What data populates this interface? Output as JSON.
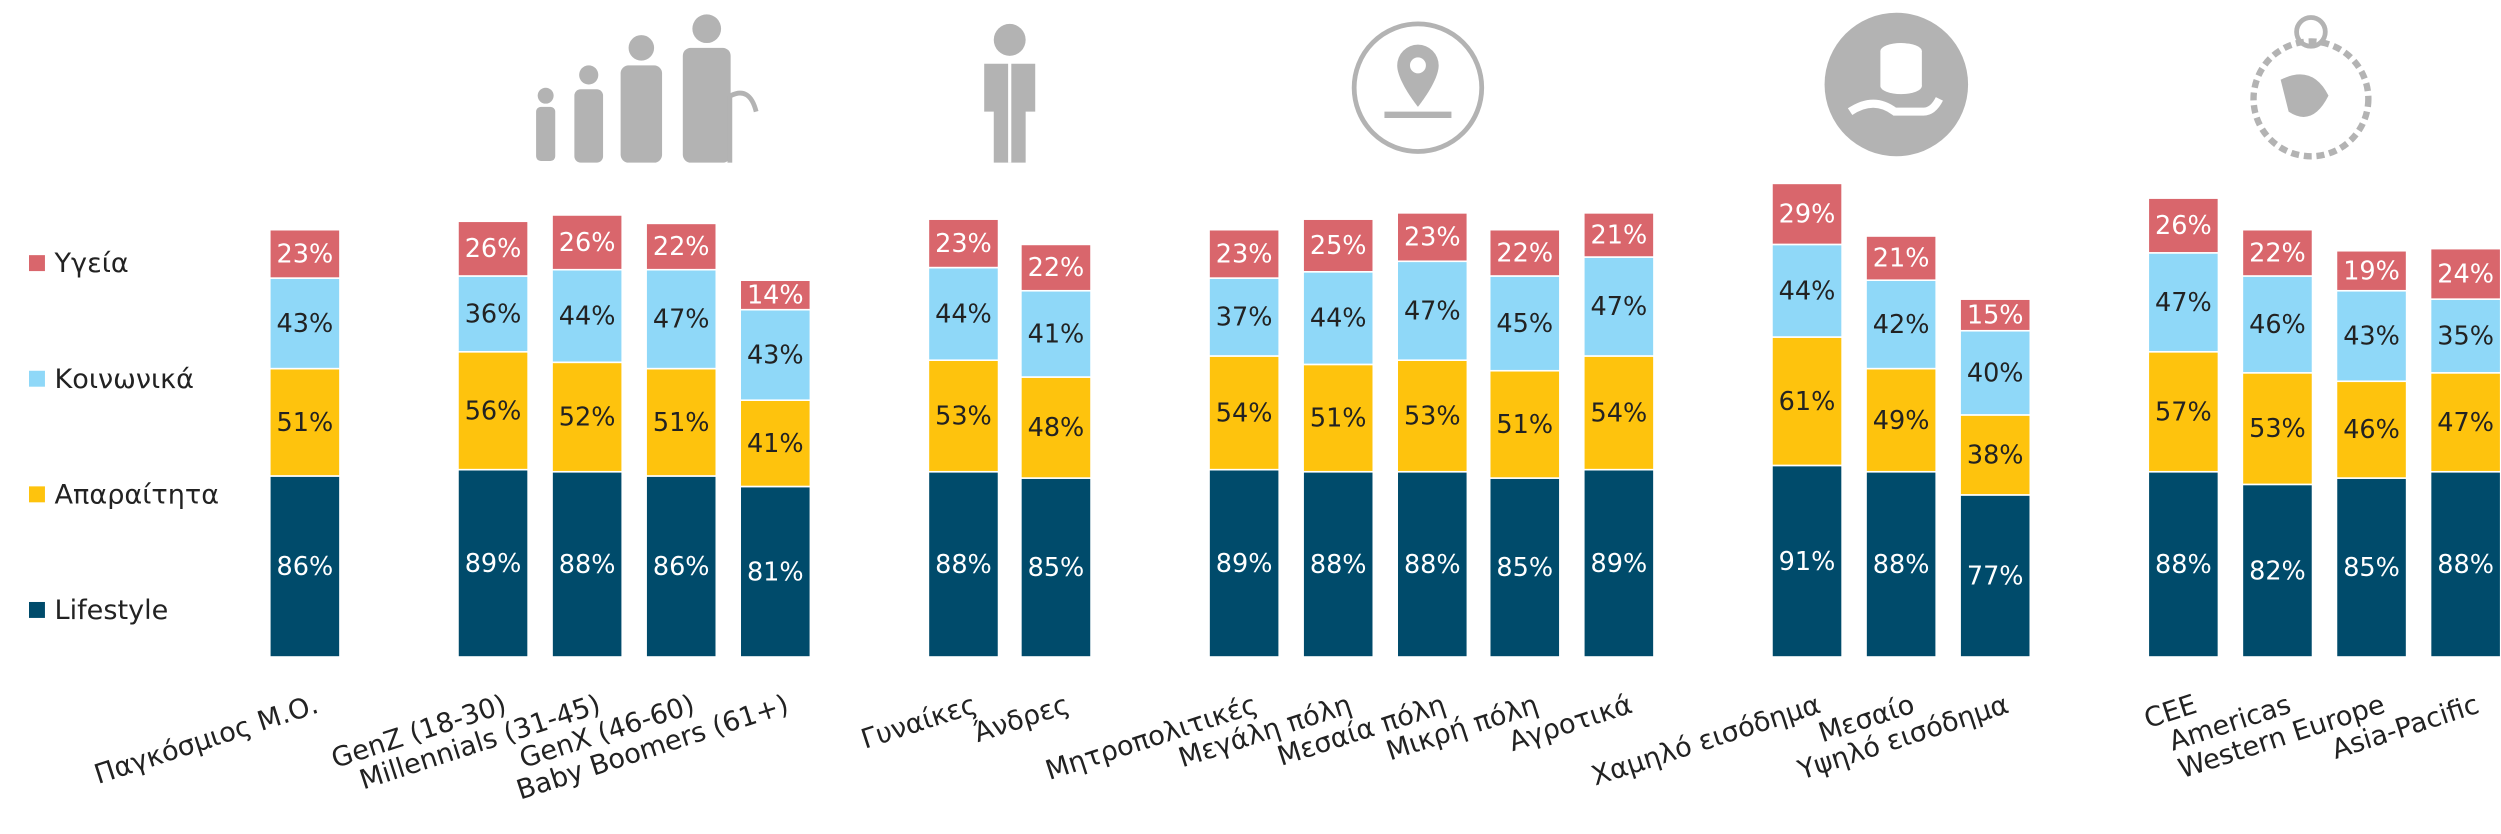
{
  "chart_data": {
    "type": "stacked_bar",
    "categories": [
      "Παγκόσμιος Μ.Ο.",
      "GenZ (18-30)",
      "Millennials (31-45)",
      "GenX (46-60)",
      "Baby Boomers (61+)",
      "Γυναίκες",
      "Άνδρες",
      "Μητροπολιτικές",
      "Μεγάλη πόλη",
      "Μεσαία πόλη",
      "Μικρή πόλη",
      "Αγροτικά",
      "Χαμηλό εισόδημα",
      "Μεσαίο",
      "Υψηλό εισόδημα",
      "CEE",
      "Americas",
      "Western Europe",
      "Asia-Pacific"
    ],
    "series": [
      {
        "name": "Lifestyle",
        "color": "#004b6b",
        "values": [
          86,
          89,
          88,
          86,
          81,
          88,
          85,
          89,
          88,
          88,
          85,
          89,
          91,
          88,
          77,
          88,
          82,
          85,
          88
        ],
        "value_labels": [
          "86%",
          "89%",
          "88%",
          "86%",
          "81%",
          "88%",
          "85%",
          "89%",
          "88%",
          "88%",
          "85%",
          "89%",
          "91%",
          "88%",
          "77%",
          "88%",
          "82%",
          "85%",
          "88%"
        ]
      },
      {
        "name": "Απαραίτητα",
        "color": "#fec30d",
        "values": [
          51,
          56,
          52,
          51,
          41,
          53,
          48,
          54,
          51,
          53,
          51,
          54,
          61,
          49,
          38,
          57,
          53,
          46,
          47
        ],
        "value_labels": [
          "51%",
          "56%",
          "52%",
          "51%",
          "41%",
          "53%",
          "48%",
          "54%",
          "51%",
          "53%",
          "51%",
          "54%",
          "61%",
          "49%",
          "38%",
          "57%",
          "53%",
          "46%",
          "47%"
        ]
      },
      {
        "name": "Κοινωνικά",
        "color": "#8fd8f8",
        "values": [
          43,
          36,
          44,
          47,
          43,
          44,
          41,
          37,
          44,
          47,
          45,
          47,
          44,
          42,
          40,
          47,
          46,
          43,
          35
        ],
        "value_labels": [
          "43%",
          "36%",
          "44%",
          "47%",
          "43%",
          "44%",
          "41%",
          "37%",
          "44%",
          "47%",
          "45%",
          "47%",
          "44%",
          "42%",
          "40%",
          "47%",
          "46%",
          "43%",
          "35%"
        ]
      },
      {
        "name": "Υγεία",
        "color": "#d9666c",
        "values": [
          23,
          26,
          26,
          22,
          14,
          23,
          22,
          23,
          25,
          23,
          22,
          21,
          29,
          21,
          15,
          26,
          22,
          19,
          24
        ],
        "value_labels": [
          "23%",
          "26%",
          "26%",
          "22%",
          "14%",
          "23%",
          "22%",
          "23%",
          "25%",
          "23%",
          "22%",
          "21%",
          "29%",
          "21%",
          "15%",
          "26%",
          "22%",
          "19%",
          "24%"
        ]
      }
    ],
    "legend": "left"
  }
}
